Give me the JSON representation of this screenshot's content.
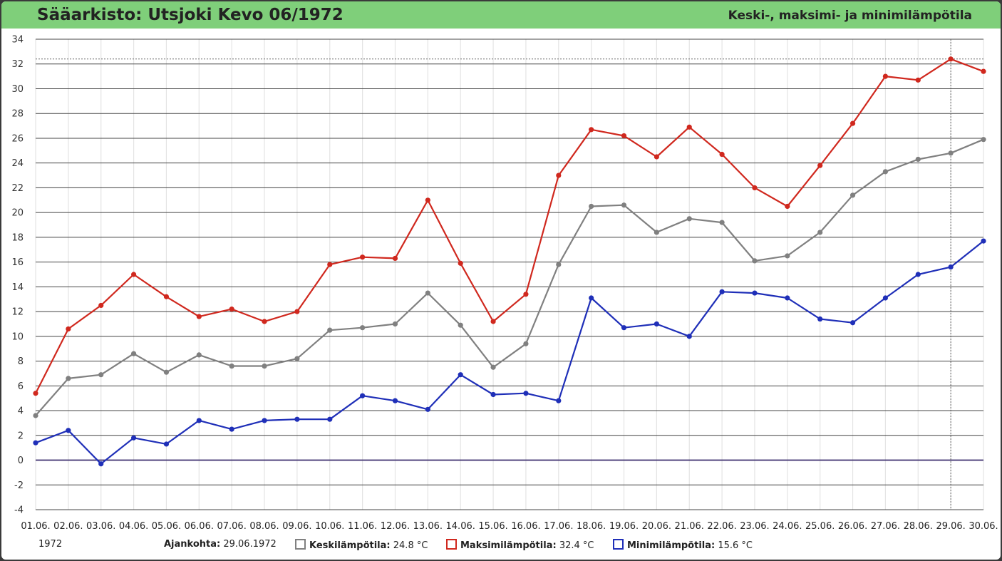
{
  "header": {
    "title": "Sääarkisto: Utsjoki Kevo 06/1972",
    "subtitle": "Keski-, maksimi- ja minimilämpötila"
  },
  "footer": {
    "year": "1972",
    "time_label": "Ajankohta:",
    "time_value": "29.06.1972",
    "legend": [
      {
        "name": "Keskilämpötila:",
        "value": "24.8 °C",
        "color": "#808080"
      },
      {
        "name": "Maksimilämpötila:",
        "value": "32.4 °C",
        "color": "#d0281e"
      },
      {
        "name": "Minimilämpötila:",
        "value": "15.6 °C",
        "color": "#1f2fb8"
      }
    ]
  },
  "chart_data": {
    "type": "line",
    "categories": [
      "01.06.",
      "02.06.",
      "03.06.",
      "04.06.",
      "05.06.",
      "06.06.",
      "07.06.",
      "08.06.",
      "09.06.",
      "10.06.",
      "11.06.",
      "12.06.",
      "13.06.",
      "14.06.",
      "15.06.",
      "16.06.",
      "17.06.",
      "18.06.",
      "19.06.",
      "20.06.",
      "21.06.",
      "22.06.",
      "23.06.",
      "24.06.",
      "25.06.",
      "26.06.",
      "27.06.",
      "28.06.",
      "29.06.",
      "30.06."
    ],
    "yticks": [
      34,
      32,
      30,
      28,
      26,
      24,
      22,
      20,
      18,
      16,
      14,
      12,
      10,
      8,
      6,
      4,
      2,
      0,
      -2,
      -4
    ],
    "ylim": [
      -4,
      34
    ],
    "grid": true,
    "highlight_index": 28,
    "highlight_value": 32.4,
    "series": [
      {
        "name": "Maksimilämpötila",
        "color": "#d0281e",
        "values": [
          5.4,
          10.6,
          12.5,
          15.0,
          13.2,
          11.6,
          12.2,
          11.2,
          12.0,
          15.8,
          16.4,
          16.3,
          21.0,
          15.9,
          11.2,
          13.4,
          23.0,
          26.7,
          26.2,
          24.5,
          26.9,
          24.7,
          22.0,
          20.5,
          23.8,
          27.2,
          31.0,
          30.7,
          32.4,
          31.4
        ]
      },
      {
        "name": "Keskilämpötila",
        "color": "#808080",
        "values": [
          3.6,
          6.6,
          6.9,
          8.6,
          7.1,
          8.5,
          7.6,
          7.6,
          8.2,
          10.5,
          10.7,
          11.0,
          13.5,
          10.9,
          7.5,
          9.4,
          15.8,
          20.5,
          20.6,
          18.4,
          19.5,
          19.2,
          16.1,
          16.5,
          18.4,
          21.4,
          23.3,
          24.3,
          24.8,
          25.9
        ]
      },
      {
        "name": "Minimilämpötila",
        "color": "#1f2fb8",
        "values": [
          1.4,
          2.4,
          -0.3,
          1.8,
          1.3,
          3.2,
          2.5,
          3.2,
          3.3,
          3.3,
          5.2,
          4.8,
          4.1,
          6.9,
          5.3,
          5.4,
          4.8,
          13.1,
          10.7,
          11.0,
          10.0,
          13.6,
          13.5,
          13.1,
          11.4,
          11.1,
          13.1,
          15.0,
          15.6,
          17.7
        ]
      }
    ]
  }
}
